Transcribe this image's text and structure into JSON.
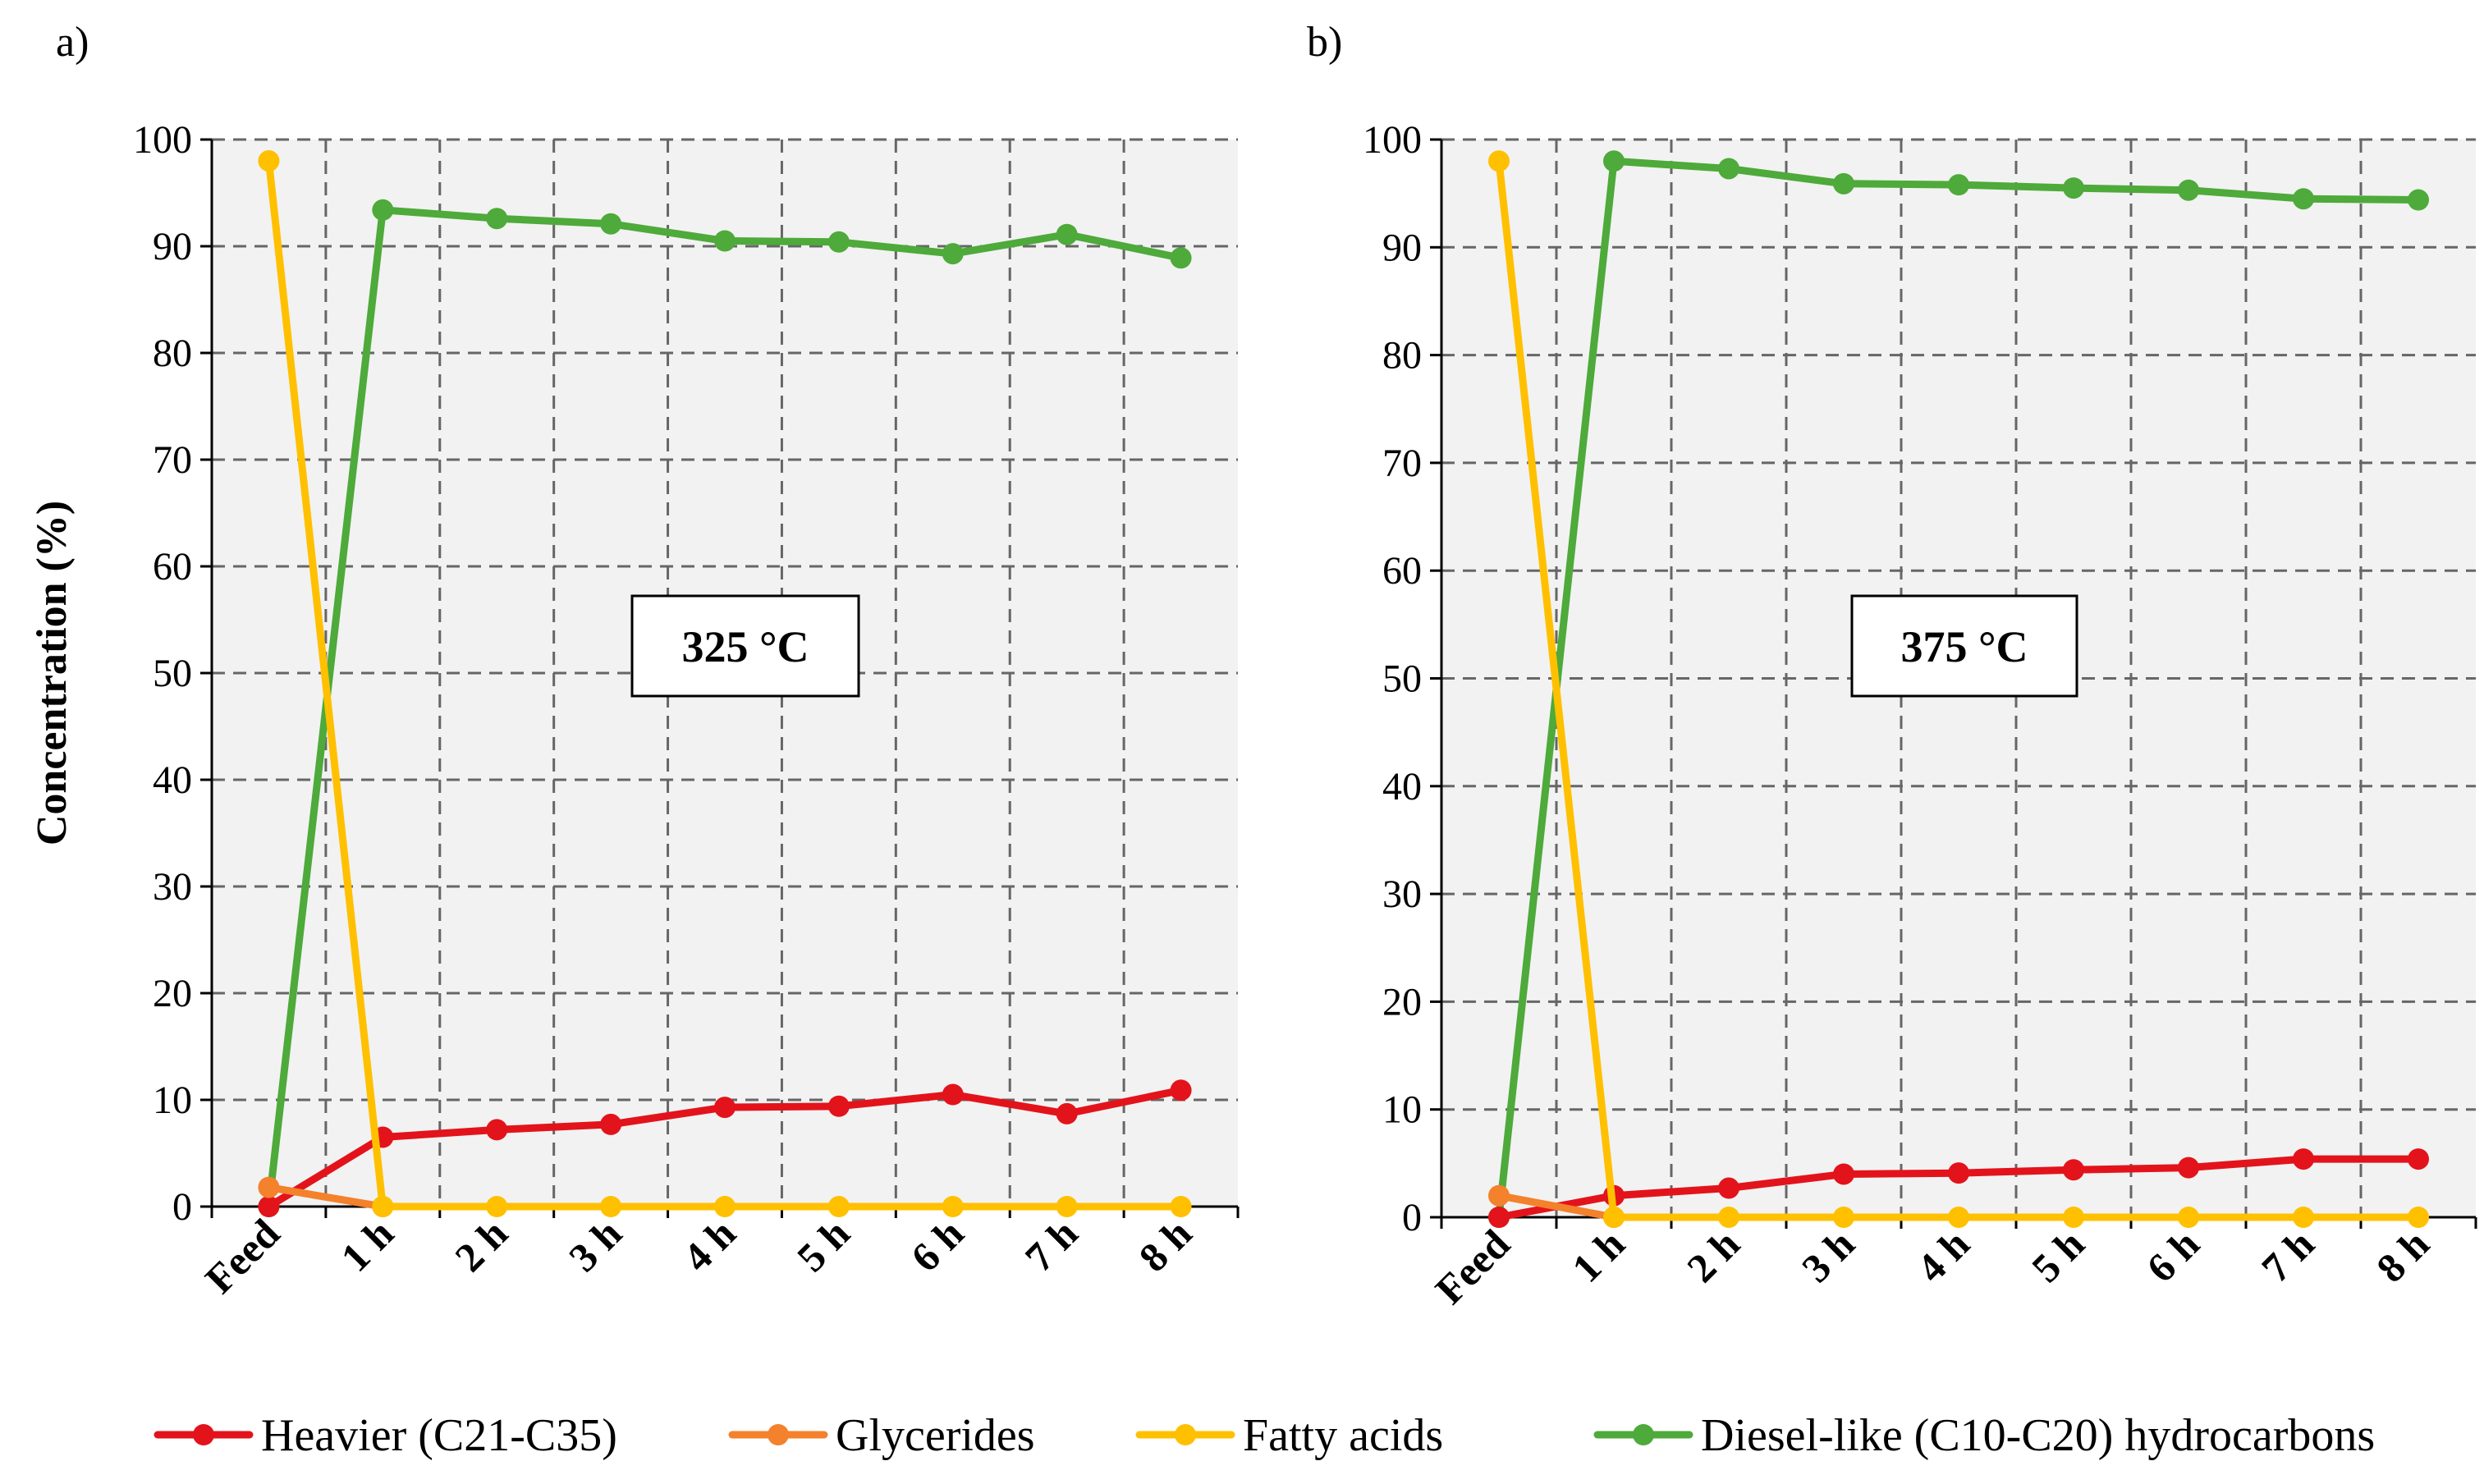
{
  "legend": [
    {
      "name": "Heavier (C21-C35)",
      "color": "#e3131b"
    },
    {
      "name": "Glycerides",
      "color": "#f4812b"
    },
    {
      "name": "Fatty acids",
      "color": "#ffc000"
    },
    {
      "name": "Diesel-like (C10-C20) hydrocarbons",
      "color": "#4eaa3a"
    }
  ],
  "chart_data": [
    {
      "type": "line",
      "panel_label": "a)",
      "annotation": "325 °C",
      "ylabel": "Concentration (%)",
      "xlabel": "",
      "ylim": [
        0,
        100
      ],
      "yticks": [
        0,
        10,
        20,
        30,
        40,
        50,
        60,
        70,
        80,
        90,
        100
      ],
      "grid": true,
      "categories": [
        "Feed",
        "1 h",
        "2 h",
        "3 h",
        "4 h",
        "5 h",
        "6 h",
        "7 h",
        "8 h"
      ],
      "series": [
        {
          "name": "Heavier (C21-C35)",
          "color": "#e3131b",
          "values": [
            0,
            6.5,
            7.2,
            7.7,
            9.3,
            9.4,
            10.5,
            8.7,
            10.9
          ]
        },
        {
          "name": "Glycerides",
          "color": "#f4812b",
          "values": [
            1.8,
            0,
            null,
            null,
            null,
            null,
            null,
            null,
            null
          ]
        },
        {
          "name": "Fatty acids",
          "color": "#ffc000",
          "values": [
            98,
            0,
            0,
            0,
            0,
            0,
            0,
            0,
            0
          ]
        },
        {
          "name": "Diesel-like (C10-C20) hydrocarbons",
          "color": "#4eaa3a",
          "values": [
            0,
            93.4,
            92.6,
            92.1,
            90.5,
            90.4,
            89.3,
            91.1,
            88.9
          ]
        }
      ]
    },
    {
      "type": "line",
      "panel_label": "b)",
      "annotation": "375 °C",
      "ylabel": "",
      "xlabel": "",
      "ylim": [
        0,
        100
      ],
      "yticks": [
        0,
        10,
        20,
        30,
        40,
        50,
        60,
        70,
        80,
        90,
        100
      ],
      "grid": true,
      "categories": [
        "Feed",
        "1 h",
        "2 h",
        "3 h",
        "4 h",
        "5 h",
        "6 h",
        "7 h",
        "8 h"
      ],
      "series": [
        {
          "name": "Heavier (C21-C35)",
          "color": "#e3131b",
          "values": [
            0,
            2.0,
            2.7,
            4.0,
            4.1,
            4.4,
            4.6,
            5.4,
            5.4
          ]
        },
        {
          "name": "Glycerides",
          "color": "#f4812b",
          "values": [
            2.0,
            0,
            null,
            null,
            null,
            null,
            null,
            null,
            null
          ]
        },
        {
          "name": "Fatty acids",
          "color": "#ffc000",
          "values": [
            98,
            0,
            0,
            0,
            0,
            0,
            0,
            0,
            0
          ]
        },
        {
          "name": "Diesel-like (C10-C20) hydrocarbons",
          "color": "#4eaa3a",
          "values": [
            0,
            98.0,
            97.3,
            95.9,
            95.8,
            95.5,
            95.3,
            94.5,
            94.4
          ]
        }
      ]
    }
  ]
}
